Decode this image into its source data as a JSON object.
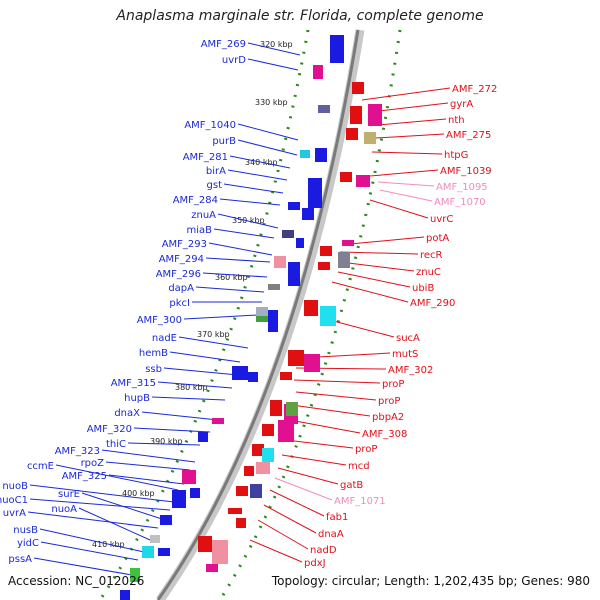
{
  "title": "Anaplasma marginale str. Florida, complete genome",
  "accession_label": "Accession: NC_012026",
  "summary_label": "Topology: circular; Length: 1,202,435 bp; Genes: 980",
  "colors": {
    "forward_label": "#1a2ad6",
    "reverse_label": "#e0101a",
    "pseudo_label": "#f08cc0",
    "backbone": "#8a8a8a",
    "tick_dot": "#2a8a1a"
  },
  "kbp_ticks": [
    "320 kbp",
    "330 kbp",
    "340 kbp",
    "350 kbp",
    "360 kbp",
    "370 kbp",
    "380 kbp",
    "390 kbp",
    "400 kbp",
    "410 kbp"
  ],
  "left_genes": [
    "AMF_269",
    "uvrD",
    "AMF_1040",
    "purB",
    "AMF_281",
    "birA",
    "gst",
    "AMF_284",
    "znuA",
    "miaB",
    "AMF_293",
    "AMF_294",
    "AMF_296",
    "dapA",
    "pkcI",
    "AMF_300",
    "nadE",
    "hemB",
    "ssb",
    "AMF_315",
    "hupB",
    "dnaX",
    "AMF_320",
    "thiC",
    "AMF_323",
    "rpoZ",
    "AMF_325",
    "ccmE",
    "nuoB",
    "nuoC1",
    "surE",
    "uvrA",
    "nuoA",
    "nusB",
    "yidC",
    "pssA"
  ],
  "right_genes": [
    "AMF_272",
    "gyrA",
    "nth",
    "AMF_275",
    "htpG",
    "AMF_1039",
    "AMF_1095",
    "AMF_1070",
    "uvrC",
    "potA",
    "recR",
    "znuC",
    "ubiB",
    "AMF_290",
    "sucA",
    "mutS",
    "AMF_302",
    "proP",
    "proP",
    "pbpA2",
    "AMF_308",
    "proP",
    "mcd",
    "gatB",
    "AMF_1071",
    "fab1",
    "dnaA",
    "nadD",
    "pdxJ"
  ],
  "right_pseudo": [
    "AMF_1095",
    "AMF_1070",
    "AMF_1071"
  ]
}
